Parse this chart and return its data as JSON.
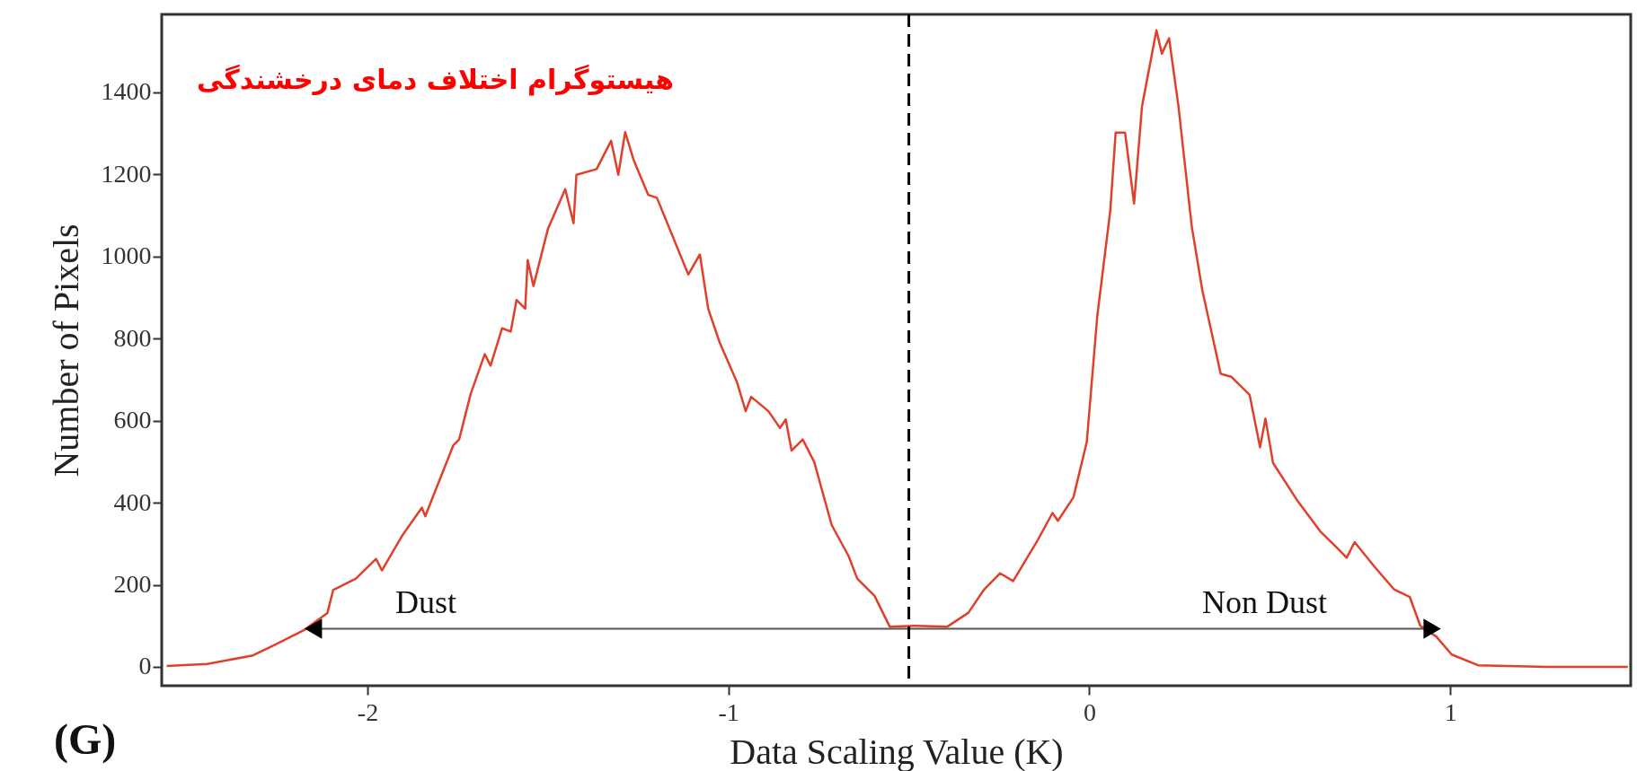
{
  "chart_data": {
    "type": "line",
    "title": "هیستوگرام اختلاف دمای درخشندگی",
    "xlabel": "Data Scaling Value (K)",
    "ylabel": "Number of Pixels",
    "xlim": [
      -2.57,
      1.5
    ],
    "xticks": [
      -2,
      -1,
      0,
      1
    ],
    "ylim": [
      -46,
      1590
    ],
    "yticks": [
      0,
      200,
      400,
      600,
      800,
      1000,
      1200,
      1400
    ],
    "grid": false,
    "marker": "none",
    "line_style": "solid",
    "series": [
      {
        "color": "#e0402a",
        "x": [
          -2.556,
          -2.444,
          -2.317,
          -2.254,
          -2.175,
          -2.111,
          -2.095,
          -2.032,
          -1.976,
          -1.96,
          -1.905,
          -1.849,
          -1.84,
          -1.762,
          -1.746,
          -1.714,
          -1.675,
          -1.659,
          -1.627,
          -1.603,
          -1.587,
          -1.563,
          -1.556,
          -1.54,
          -1.5,
          -1.452,
          -1.429,
          -1.421,
          -1.365,
          -1.325,
          -1.305,
          -1.286,
          -1.262,
          -1.222,
          -1.198,
          -1.111,
          -1.079,
          -1.056,
          -1.024,
          -0.976,
          -0.952,
          -0.937,
          -0.889,
          -0.857,
          -0.841,
          -0.825,
          -0.794,
          -0.762,
          -0.714,
          -0.667,
          -0.643,
          -0.595,
          -0.553,
          -0.48,
          -0.393,
          -0.335,
          -0.291,
          -0.247,
          -0.211,
          -0.146,
          -0.102,
          -0.087,
          -0.044,
          -0.007,
          0.022,
          0.058,
          0.073,
          0.099,
          0.124,
          0.146,
          0.186,
          0.201,
          0.221,
          0.247,
          0.284,
          0.313,
          0.364,
          0.393,
          0.444,
          0.473,
          0.488,
          0.509,
          0.575,
          0.64,
          0.684,
          0.713,
          0.735,
          0.793,
          0.844,
          0.888,
          0.917,
          0.961,
          1.004,
          1.077,
          1.266,
          1.492
        ],
        "values": [
          2,
          7,
          28,
          55,
          90,
          131,
          187,
          215,
          263,
          235,
          318,
          388,
          367,
          540,
          554,
          665,
          762,
          734,
          825,
          817,
          894,
          873,
          991,
          928,
          1067,
          1164,
          1081,
          1199,
          1213,
          1282,
          1199,
          1303,
          1234,
          1150,
          1143,
          956,
          1005,
          873,
          790,
          693,
          623,
          658,
          623,
          582,
          603,
          527,
          554,
          499,
          346,
          270,
          215,
          173,
          98,
          100,
          98,
          132,
          189,
          228,
          209,
          304,
          375,
          356,
          413,
          548,
          854,
          1111,
          1302,
          1302,
          1129,
          1366,
          1551,
          1494,
          1532,
          1366,
          1072,
          918,
          714,
          707,
          663,
          535,
          605,
          497,
          407,
          330,
          292,
          266,
          304,
          241,
          189,
          170,
          100,
          74,
          30,
          4,
          0,
          0
        ]
      },
      {
        "color": "#555555",
        "x": [
          -2.15,
          0.95
        ],
        "values": [
          93,
          93
        ],
        "marker": "triangle"
      }
    ],
    "ref_lines": [
      {
        "axis": "x",
        "value": -0.5,
        "color": "#000000",
        "line_style": "dashed"
      }
    ],
    "annotations": [
      "Dust",
      "Non Dust",
      "(G)"
    ]
  }
}
